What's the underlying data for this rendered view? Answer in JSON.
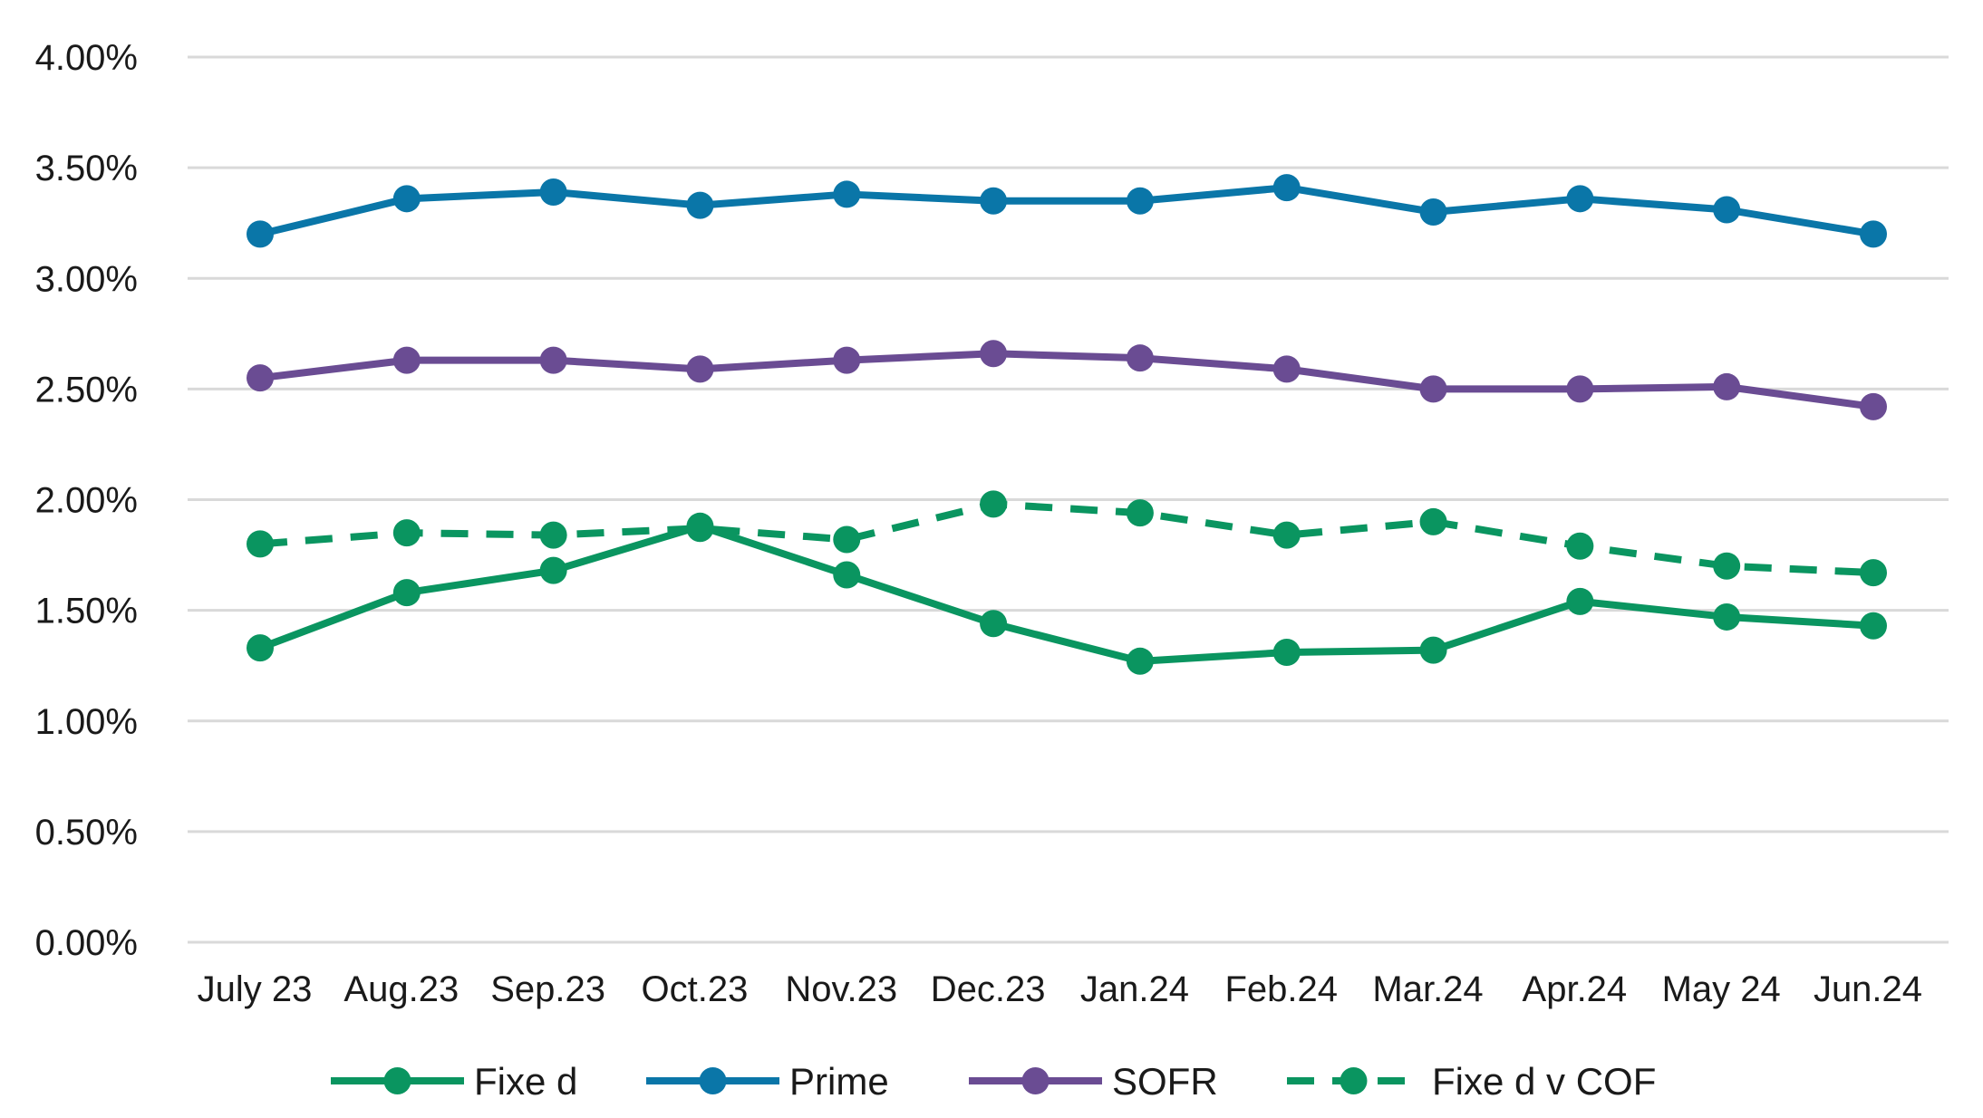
{
  "chart_data": {
    "type": "line",
    "title": "",
    "xlabel": "",
    "ylabel": "",
    "categories": [
      "July 23",
      "Aug.23",
      "Sep.23",
      "Oct.23",
      "Nov.23",
      "Dec.23",
      "Jan.24",
      "Feb.24",
      "Mar.24",
      "Apr.24",
      "May 24",
      "Jun.24"
    ],
    "ylim": [
      0,
      4
    ],
    "yticks": [
      "0.00%",
      "0.50%",
      "1.00%",
      "1.50%",
      "2.00%",
      "2.50%",
      "3.00%",
      "3.50%",
      "4.00%"
    ],
    "grid": true,
    "legend_position": "bottom",
    "series": [
      {
        "name": "Fixe d",
        "color": "#0a9560",
        "dashed": false,
        "values": [
          1.33,
          1.58,
          1.68,
          1.88,
          1.66,
          1.44,
          1.27,
          1.31,
          1.32,
          1.54,
          1.47,
          1.43
        ]
      },
      {
        "name": "Prime",
        "color": "#0a76a8",
        "dashed": false,
        "values": [
          3.2,
          3.36,
          3.39,
          3.33,
          3.38,
          3.35,
          3.35,
          3.41,
          3.3,
          3.36,
          3.31,
          3.2
        ]
      },
      {
        "name": "SOFR",
        "color": "#6a4c93",
        "dashed": false,
        "values": [
          2.55,
          2.63,
          2.63,
          2.59,
          2.63,
          2.66,
          2.64,
          2.59,
          2.5,
          2.5,
          2.51,
          2.42
        ]
      },
      {
        "name": "Fixe d v COF",
        "color": "#0a9560",
        "dashed": true,
        "values": [
          1.8,
          1.85,
          1.84,
          1.87,
          1.82,
          1.98,
          1.94,
          1.84,
          1.9,
          1.79,
          1.7,
          1.67
        ]
      }
    ]
  }
}
